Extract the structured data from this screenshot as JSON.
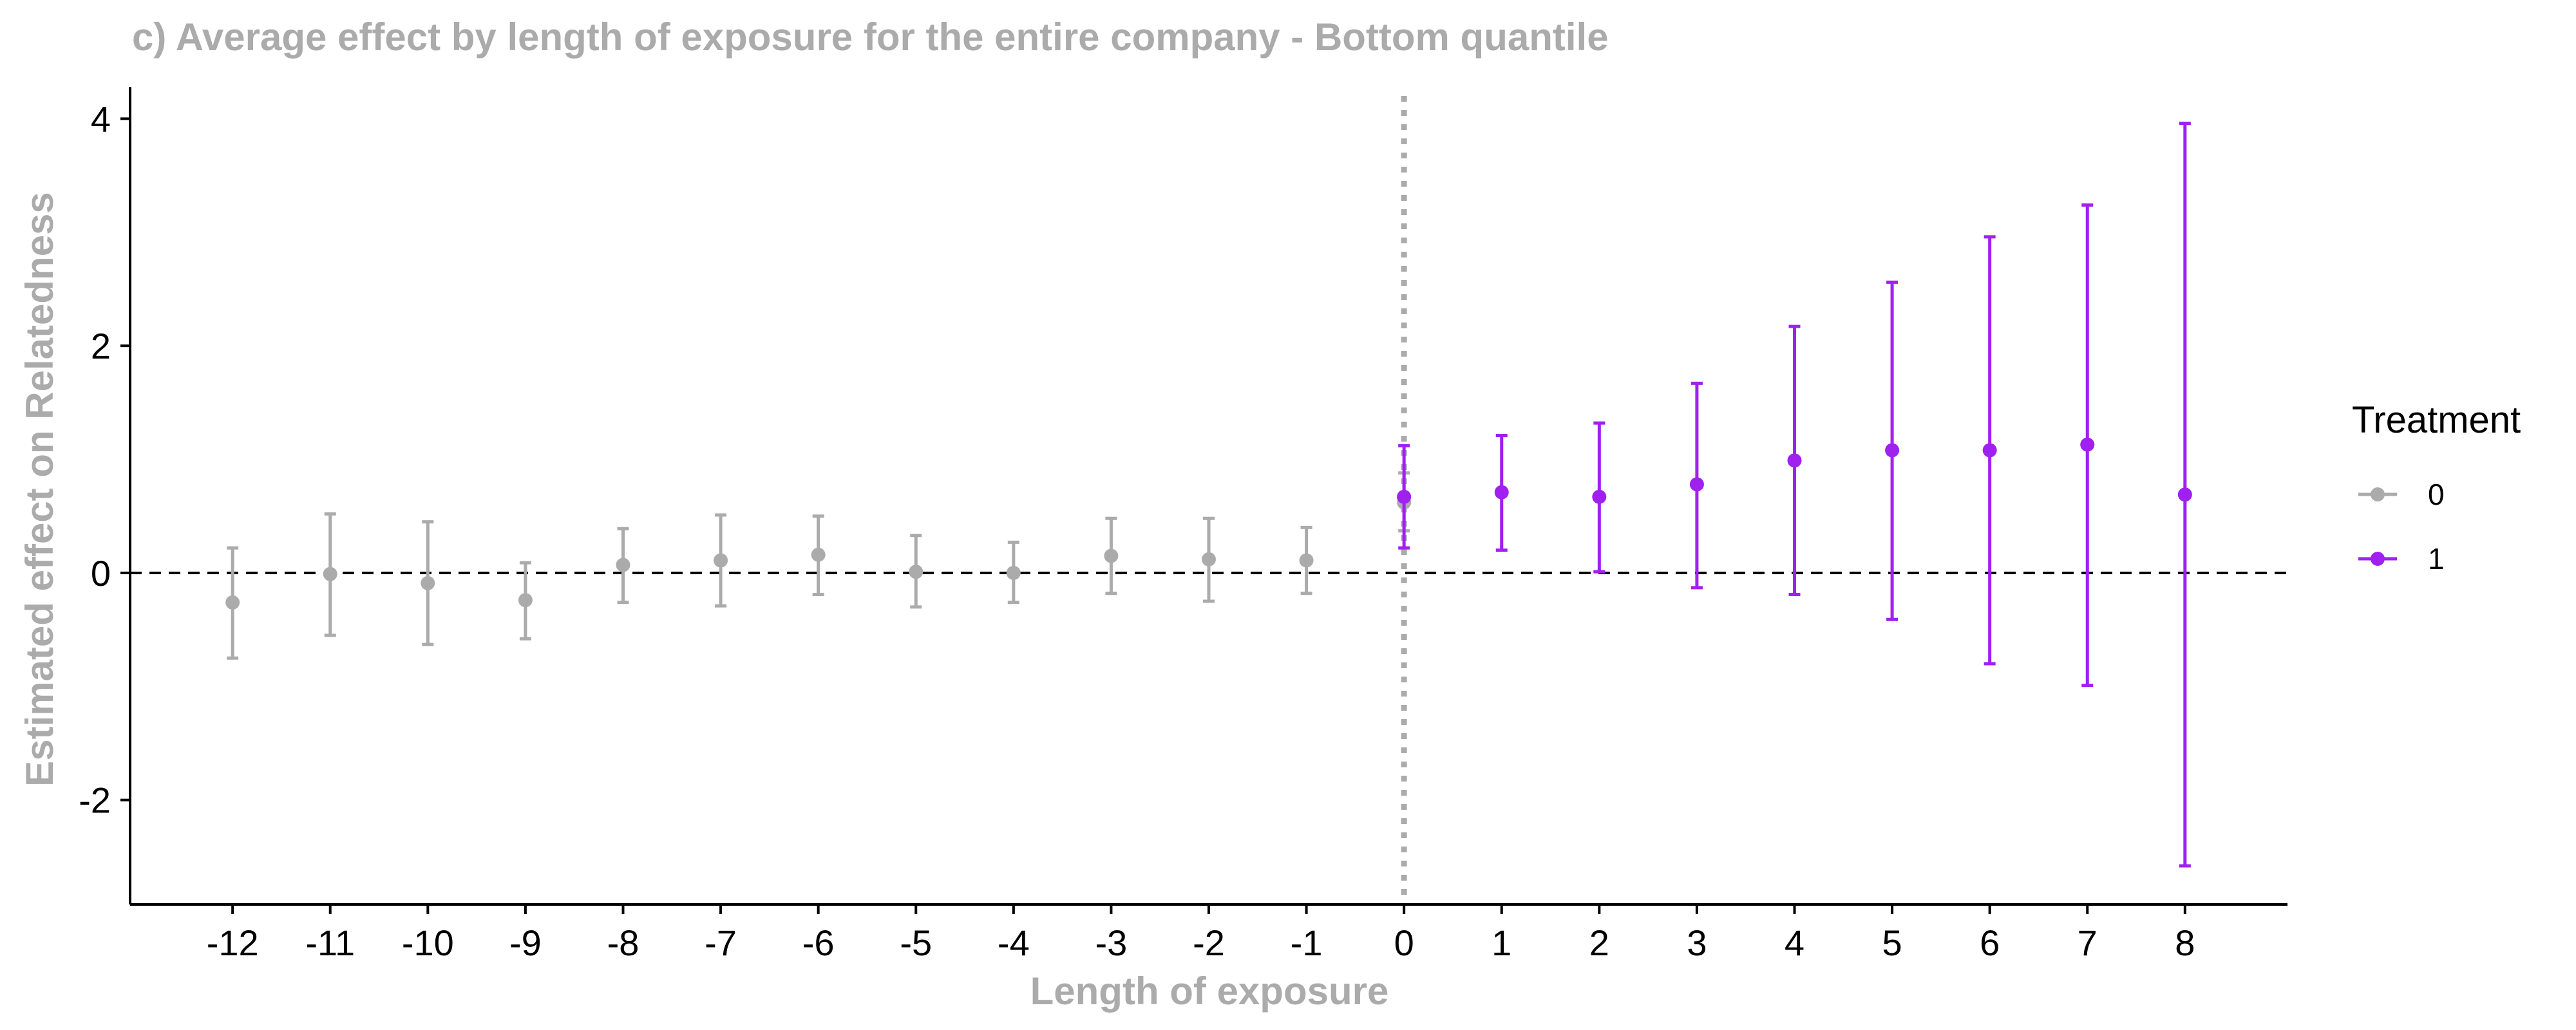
{
  "chart_data": {
    "type": "scatter",
    "title": "c) Average effect by length of exposure for the entire company - Bottom quantile",
    "xlabel": "Length of exposure",
    "ylabel": "Estimated effect on Relatedness",
    "xlim": [
      -13.05,
      9.05
    ],
    "ylim": [
      -2.92,
      4.28
    ],
    "x_ticks": [
      -12,
      -11,
      -10,
      -9,
      -8,
      -7,
      -6,
      -5,
      -4,
      -3,
      -2,
      -1,
      0,
      1,
      2,
      3,
      4,
      5,
      6,
      7,
      8
    ],
    "y_ticks": [
      -2,
      0,
      2,
      4
    ],
    "reference_lines": {
      "horizontal_y": 0,
      "vertical_x": 0
    },
    "legend": {
      "title": "Treatment",
      "position": "right",
      "entries": [
        {
          "label": "0",
          "color": "#ababab"
        },
        {
          "label": "1",
          "color": "#a020f0"
        }
      ]
    },
    "series": [
      {
        "name": "0",
        "color": "#ababab",
        "points": [
          {
            "x": -12,
            "y": -0.26,
            "lo": -0.75,
            "hi": 0.22
          },
          {
            "x": -11,
            "y": -0.01,
            "lo": -0.55,
            "hi": 0.52
          },
          {
            "x": -10,
            "y": -0.09,
            "lo": -0.63,
            "hi": 0.45
          },
          {
            "x": -9,
            "y": -0.24,
            "lo": -0.58,
            "hi": 0.09
          },
          {
            "x": -8,
            "y": 0.07,
            "lo": -0.26,
            "hi": 0.39
          },
          {
            "x": -7,
            "y": 0.11,
            "lo": -0.29,
            "hi": 0.51
          },
          {
            "x": -6,
            "y": 0.16,
            "lo": -0.19,
            "hi": 0.5
          },
          {
            "x": -5,
            "y": 0.01,
            "lo": -0.3,
            "hi": 0.33
          },
          {
            "x": -4,
            "y": 0.0,
            "lo": -0.26,
            "hi": 0.27
          },
          {
            "x": -3,
            "y": 0.15,
            "lo": -0.18,
            "hi": 0.48
          },
          {
            "x": -2,
            "y": 0.12,
            "lo": -0.25,
            "hi": 0.48
          },
          {
            "x": -1,
            "y": 0.11,
            "lo": -0.18,
            "hi": 0.4
          },
          {
            "x": 0,
            "y": 0.62,
            "lo": 0.37,
            "hi": 0.88
          }
        ]
      },
      {
        "name": "1",
        "color": "#a020f0",
        "points": [
          {
            "x": 0,
            "y": 0.67,
            "lo": 0.22,
            "hi": 1.12
          },
          {
            "x": 1,
            "y": 0.71,
            "lo": 0.2,
            "hi": 1.21
          },
          {
            "x": 2,
            "y": 0.67,
            "lo": 0.01,
            "hi": 1.32
          },
          {
            "x": 3,
            "y": 0.78,
            "lo": -0.13,
            "hi": 1.67
          },
          {
            "x": 4,
            "y": 0.99,
            "lo": -0.19,
            "hi": 2.17
          },
          {
            "x": 5,
            "y": 1.08,
            "lo": -0.41,
            "hi": 2.56
          },
          {
            "x": 6,
            "y": 1.08,
            "lo": -0.8,
            "hi": 2.96
          },
          {
            "x": 7,
            "y": 1.13,
            "lo": -0.99,
            "hi": 3.24
          },
          {
            "x": 8,
            "y": 0.69,
            "lo": -2.58,
            "hi": 3.96
          }
        ]
      }
    ]
  }
}
